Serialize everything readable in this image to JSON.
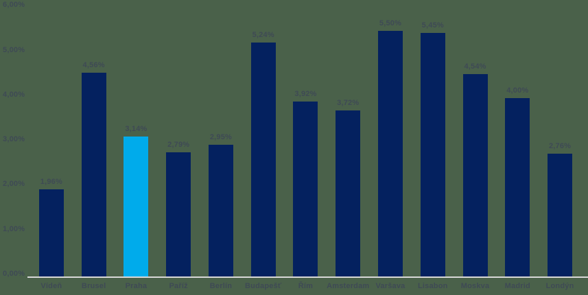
{
  "chart_data": {
    "type": "bar",
    "title": "",
    "xlabel": "",
    "ylabel": "",
    "categories": [
      "Vídeň",
      "Brusel",
      "Praha",
      "Paříž",
      "Berlín",
      "Budapešť",
      "Řím",
      "Amsterdam",
      "Varšava",
      "Lisabon",
      "Moskva",
      "Madrid",
      "Londýn"
    ],
    "values": [
      1.96,
      4.56,
      3.14,
      2.79,
      2.95,
      5.24,
      3.92,
      3.72,
      5.5,
      5.45,
      4.54,
      4.0,
      2.76
    ],
    "value_labels": [
      "1,96%",
      "4,56%",
      "3,14%",
      "2,79%",
      "2,95%",
      "5,24%",
      "3,92%",
      "3,72%",
      "5,50%",
      "5,45%",
      "4,54%",
      "4,00%",
      "2,76%"
    ],
    "highlighted_category_index": 2,
    "y_ticks": [
      {
        "value": 0,
        "label": "0,00%"
      },
      {
        "value": 1,
        "label": "1,00%"
      },
      {
        "value": 2,
        "label": "2,00%"
      },
      {
        "value": 3,
        "label": "3,00%"
      },
      {
        "value": 4,
        "label": "4,00%"
      },
      {
        "value": 5,
        "label": "5,00%"
      },
      {
        "value": 6,
        "label": "6,00%"
      }
    ],
    "ylim": [
      0,
      6
    ],
    "grid": false,
    "legend": "none",
    "data_labels_shown": true
  },
  "colors": {
    "background": "#4A614A",
    "bar": "#04215F",
    "bar_highlight": "#00ABEB",
    "axis_line": "#D9D9D9",
    "text": "#3F4A55"
  }
}
